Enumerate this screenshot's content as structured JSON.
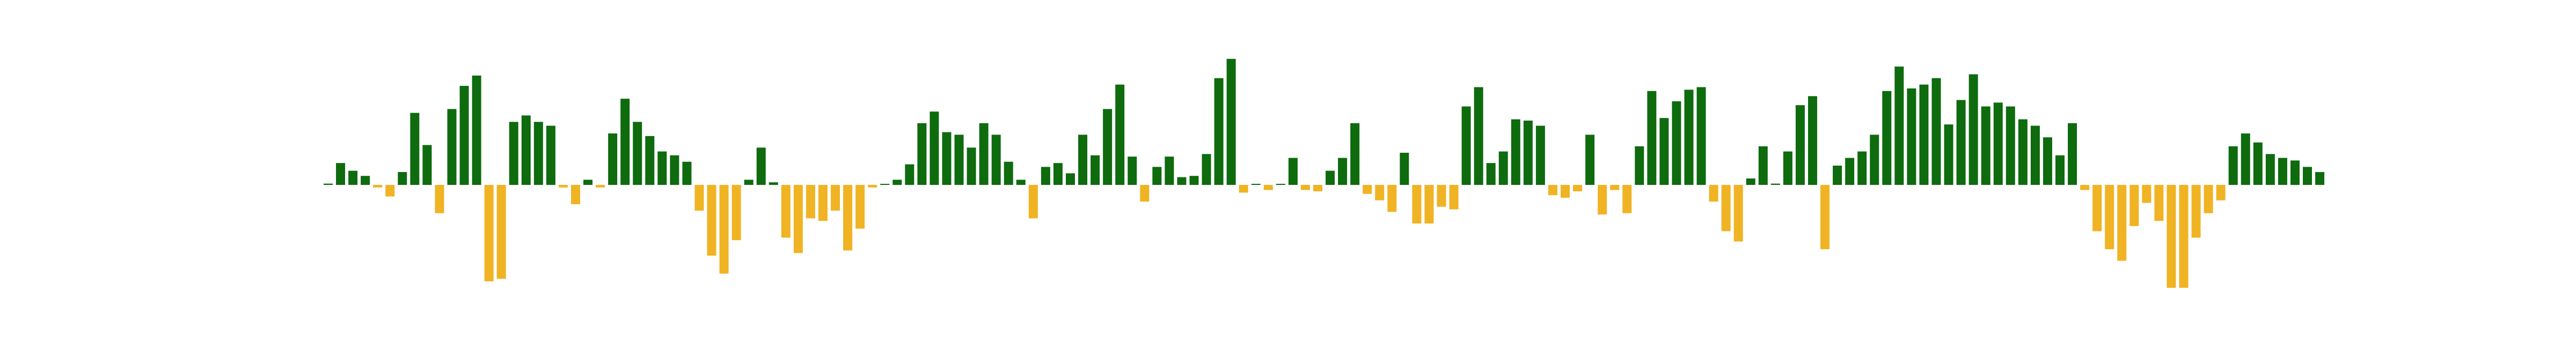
{
  "chart_data": {
    "type": "bar",
    "title": "",
    "xlabel": "",
    "ylabel": "",
    "grid": false,
    "axes_visible": false,
    "ylim": [
      -0.75,
      1.0
    ],
    "colors": {
      "positive": "#0e6b0e",
      "negative": "#f0b323"
    },
    "values": [
      0.01,
      0.17,
      0.11,
      0.07,
      -0.02,
      -0.09,
      0.1,
      0.56,
      0.31,
      -0.22,
      0.59,
      0.77,
      0.85,
      -0.75,
      -0.73,
      0.49,
      0.54,
      0.49,
      0.46,
      -0.02,
      -0.15,
      0.04,
      -0.02,
      0.4,
      0.67,
      0.49,
      0.38,
      0.26,
      0.23,
      0.18,
      -0.2,
      -0.55,
      -0.69,
      -0.43,
      0.04,
      0.29,
      0.02,
      -0.41,
      -0.53,
      -0.26,
      -0.28,
      -0.2,
      -0.51,
      -0.34,
      -0.02,
      0.0,
      0.04,
      0.16,
      0.48,
      0.57,
      0.41,
      0.39,
      0.29,
      0.48,
      0.39,
      0.18,
      0.04,
      -0.26,
      0.14,
      0.17,
      0.09,
      0.39,
      0.23,
      0.59,
      0.78,
      0.22,
      -0.13,
      0.14,
      0.22,
      0.06,
      0.07,
      0.24,
      0.83,
      0.98,
      -0.06,
      0.0,
      -0.04,
      0.0,
      0.21,
      -0.04,
      -0.05,
      0.11,
      0.21,
      0.48,
      -0.07,
      -0.12,
      -0.21,
      0.25,
      -0.3,
      -0.3,
      -0.17,
      -0.19,
      0.61,
      0.76,
      0.17,
      0.26,
      0.51,
      0.5,
      0.46,
      -0.08,
      -0.1,
      -0.05,
      0.39,
      -0.23,
      -0.04,
      -0.22,
      0.3,
      0.73,
      0.52,
      0.65,
      0.74,
      0.76,
      -0.13,
      -0.36,
      -0.44,
      0.05,
      0.3,
      0.01,
      0.26,
      0.62,
      0.69,
      -0.5,
      0.15,
      0.21,
      0.26,
      0.39,
      0.73,
      0.92,
      0.75,
      0.78,
      0.83,
      0.47,
      0.66,
      0.86,
      0.61,
      0.64,
      0.61,
      0.51,
      0.46,
      0.37,
      0.23,
      0.48,
      -0.04,
      -0.36,
      -0.5,
      -0.59,
      -0.32,
      -0.14,
      -0.28,
      -0.8,
      -0.8,
      -0.41,
      -0.22,
      -0.12,
      0.3,
      0.4,
      0.33,
      0.24,
      0.21,
      0.19,
      0.14,
      0.1
    ]
  }
}
